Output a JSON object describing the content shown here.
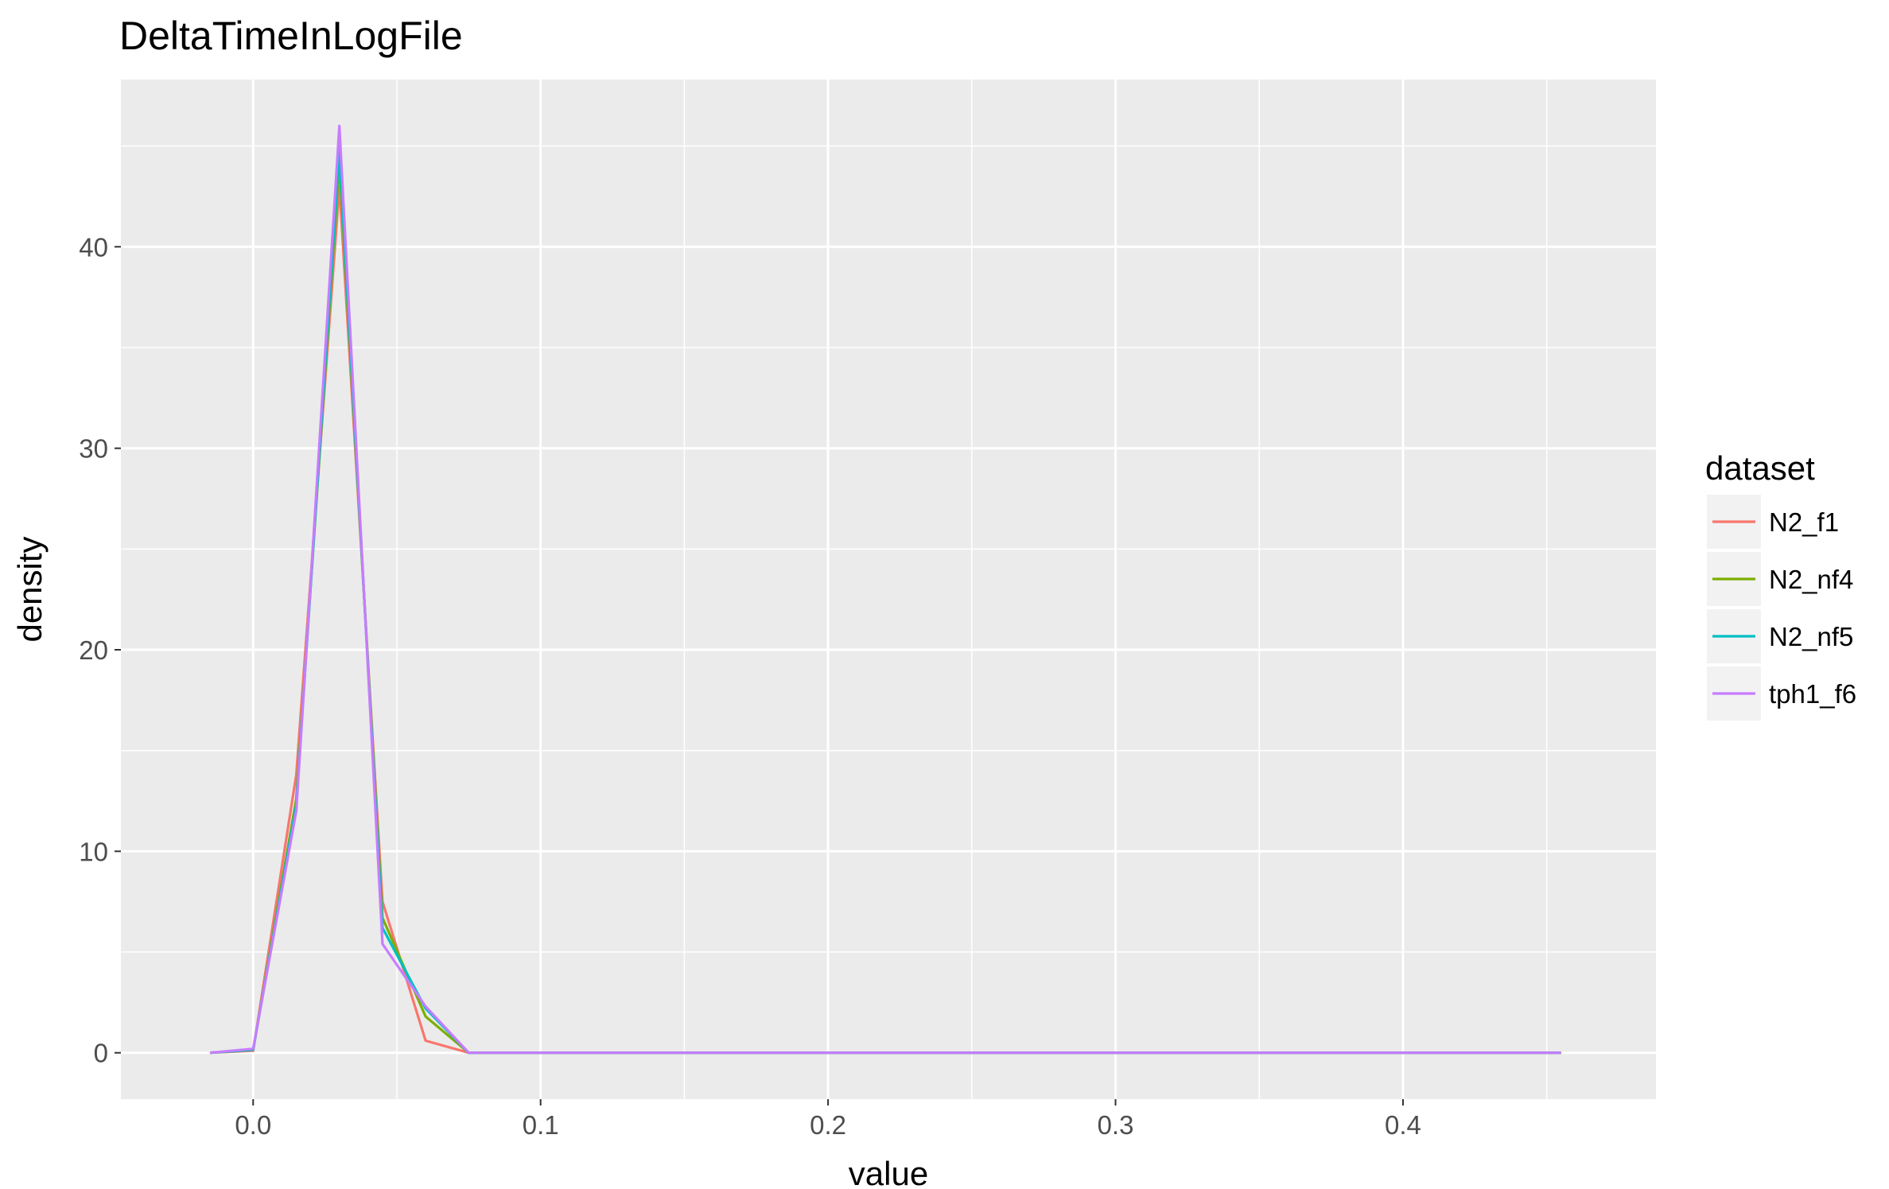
{
  "chart_data": {
    "type": "line",
    "title": "DeltaTimeInLogFile",
    "xlabel": "value",
    "ylabel": "density",
    "xlim": [
      -0.046,
      0.488
    ],
    "ylim": [
      -2.3,
      48.3
    ],
    "xticks": [
      0.0,
      0.1,
      0.2,
      0.3,
      0.4
    ],
    "xtick_labels": [
      "0.0",
      "0.1",
      "0.2",
      "0.3",
      "0.4"
    ],
    "yticks": [
      0,
      10,
      20,
      30,
      40
    ],
    "ytick_labels": [
      "0",
      "10",
      "20",
      "30",
      "40"
    ],
    "grid": true,
    "legend": {
      "title": "dataset",
      "position": "right"
    },
    "series": [
      {
        "name": "N2_f1",
        "color": "#F8766D",
        "x": [
          -0.015,
          0.0,
          0.015,
          0.03,
          0.045,
          0.06,
          0.075,
          0.09,
          0.455
        ],
        "y": [
          0,
          0.1,
          13.8,
          43.0,
          7.5,
          0.6,
          0.0,
          0.0,
          0.0
        ]
      },
      {
        "name": "N2_nf4",
        "color": "#7CAE00",
        "x": [
          -0.015,
          0.0,
          0.015,
          0.03,
          0.045,
          0.06,
          0.075,
          0.09,
          0.455
        ],
        "y": [
          0,
          0.15,
          12.6,
          44.2,
          6.7,
          1.8,
          0.0,
          0.0,
          0.0
        ]
      },
      {
        "name": "N2_nf5",
        "color": "#00BFC4",
        "x": [
          -0.015,
          0.0,
          0.015,
          0.03,
          0.045,
          0.06,
          0.075,
          0.09,
          0.455
        ],
        "y": [
          0,
          0.15,
          12.3,
          44.8,
          6.2,
          2.2,
          0.0,
          0.0,
          0.0
        ]
      },
      {
        "name": "tph1_f6",
        "color": "#C77CFF",
        "x": [
          -0.015,
          0.0,
          0.015,
          0.03,
          0.045,
          0.06,
          0.075,
          0.09,
          0.455
        ],
        "y": [
          0,
          0.2,
          12.0,
          46.0,
          5.4,
          2.3,
          0.0,
          0.0,
          0.0
        ]
      }
    ]
  }
}
